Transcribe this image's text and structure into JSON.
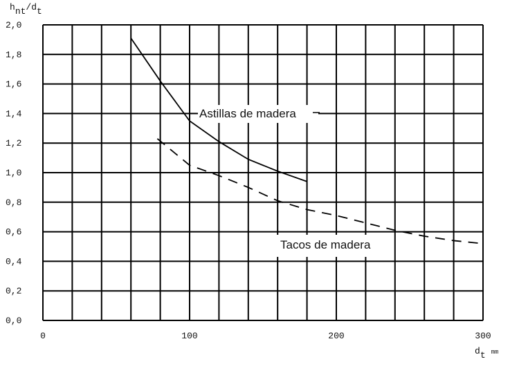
{
  "chart_data": {
    "type": "line",
    "y_label_parts": [
      "h",
      "nt",
      "/d",
      "t"
    ],
    "x_label_parts": [
      "d",
      "t",
      "mm"
    ],
    "series": [
      {
        "name": "Astillas de madera",
        "color": "#000000",
        "dash": false,
        "x": [
          60,
          80,
          100,
          120,
          140,
          160,
          180
        ],
        "values": [
          1.91,
          1.62,
          1.35,
          1.21,
          1.09,
          1.01,
          0.94
        ]
      },
      {
        "name": "Tacos de madera",
        "color": "#000000",
        "dash": true,
        "x": [
          78,
          100,
          120,
          140,
          160,
          180,
          200,
          220,
          240,
          260,
          280,
          300
        ],
        "values": [
          1.23,
          1.05,
          0.98,
          0.9,
          0.81,
          0.75,
          0.71,
          0.66,
          0.61,
          0.57,
          0.54,
          0.52
        ]
      }
    ],
    "xlim": [
      0,
      300
    ],
    "xticks": [
      0,
      100,
      200,
      300
    ],
    "xgrid": [
      0,
      20,
      40,
      60,
      80,
      100,
      120,
      140,
      160,
      180,
      200,
      220,
      240,
      260,
      280,
      300
    ],
    "ylim": [
      0,
      2.0
    ],
    "yticks": [
      {
        "value": 0,
        "label": "0,0"
      },
      {
        "value": 0.2,
        "label": "0,2"
      },
      {
        "value": 0.4,
        "label": "0,4"
      },
      {
        "value": 0.6,
        "label": "0,6"
      },
      {
        "value": 0.8,
        "label": "0,8"
      },
      {
        "value": 1.0,
        "label": "1,0"
      },
      {
        "value": 1.2,
        "label": "1,2"
      },
      {
        "value": 1.4,
        "label": "1,4"
      },
      {
        "value": 1.6,
        "label": "1,6"
      },
      {
        "value": 1.8,
        "label": "1,8"
      },
      {
        "value": 2.0,
        "label": "2,0"
      }
    ],
    "grid": true
  }
}
